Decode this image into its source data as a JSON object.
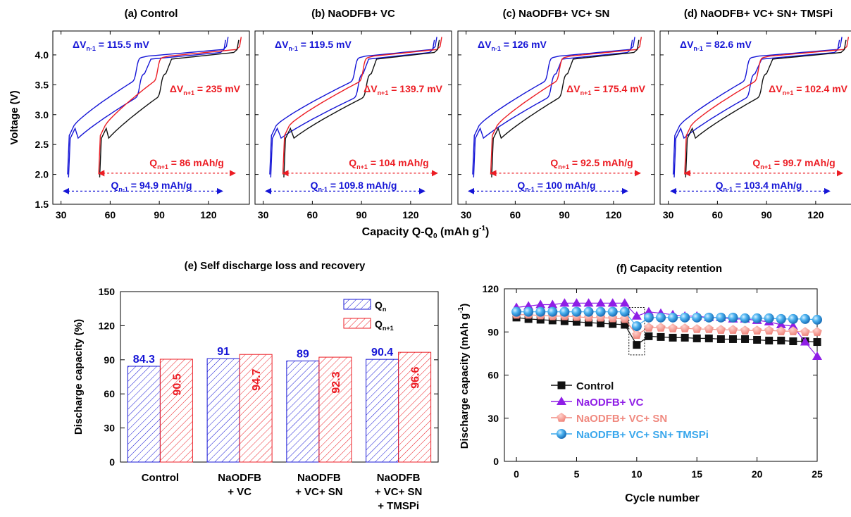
{
  "colors": {
    "blue": "#1515d6",
    "red": "#ec1d24",
    "black": "#111111",
    "purple": "#8f1ee6",
    "salmon": "#f08a80",
    "skyblue": "#3aa7ec"
  },
  "chart_data": [
    {
      "type": "line",
      "panel_group": "voltage-capacity",
      "ylabel": "Voltage (V)",
      "xlabel_main": "Capacity Q-Q",
      "xlabel_sub": "0",
      "xlabel_unit": " (mAh g",
      "xlabel_exp": "-1",
      "xlabel_end": ")",
      "xlim": [
        25,
        145
      ],
      "ylim": [
        1.5,
        4.4
      ],
      "xticks": [
        30,
        60,
        90,
        120
      ],
      "yticks": [
        1.5,
        2.0,
        2.5,
        3.0,
        3.5,
        4.0
      ],
      "yticklabels": [
        "1.5",
        "2.0",
        "2.5",
        "3.0",
        "3.5",
        "4.0"
      ],
      "panels": [
        {
          "title": "(a) Control",
          "blue_start": 34,
          "blue_plateau": 74,
          "blue_end": 132,
          "red_start": 53,
          "red_plateau": 87,
          "red_end": 140,
          "dv_prev": "115.5 mV",
          "dv_next": "235 mV",
          "q_next": "86 mAh/g",
          "q_prev": "94.9 mAh/g"
        },
        {
          "title": "(b) NaODFB+ VC",
          "blue_start": 34,
          "blue_plateau": 84,
          "blue_end": 136,
          "red_start": 42,
          "red_plateau": 89,
          "red_end": 139,
          "dv_prev": "119.5 mV",
          "dv_next": "139.7 mV",
          "q_next": "104 mAh/g",
          "q_prev": "109.8 mAh/g"
        },
        {
          "title": "(c) NaODFB+ VC+ SN",
          "blue_start": 34,
          "blue_plateau": 78,
          "blue_end": 133,
          "red_start": 45,
          "red_plateau": 85,
          "red_end": 137,
          "dv_prev": "126 mV",
          "dv_next": "175.4 mV",
          "q_next": "92.5 mAh/g",
          "q_prev": "100 mAh/g"
        },
        {
          "title": "(d) NaODFB+ VC+ SN+ TMSPi",
          "blue_start": 33,
          "blue_plateau": 76,
          "blue_end": 136,
          "red_start": 40,
          "red_plateau": 83,
          "red_end": 140,
          "dv_prev": "82.6 mV",
          "dv_next": "102.4 mV",
          "q_next": "99.7 mAh/g",
          "q_prev": "103.4 mAh/g"
        }
      ]
    },
    {
      "type": "bar",
      "title": "(e) Self discharge loss and recovery",
      "ylabel": "Discharge capacity (%)",
      "ylim": [
        0,
        150
      ],
      "yticks": [
        0,
        30,
        60,
        90,
        120,
        150
      ],
      "categories": [
        [
          "Control"
        ],
        [
          "NaODFB",
          "+ VC"
        ],
        [
          "NaODFB",
          "+ VC+ SN"
        ],
        [
          "NaODFB",
          "+ VC+ SN",
          "+ TMSPi"
        ]
      ],
      "series": [
        {
          "name": "Q",
          "sub": "n",
          "values": [
            84.3,
            91,
            89,
            90.4
          ],
          "labels": [
            "84.3",
            "91",
            "89",
            "90.4"
          ]
        },
        {
          "name": "Q",
          "sub": "n+1",
          "values": [
            90.5,
            94.7,
            92.3,
            96.6
          ],
          "labels": [
            "90.5",
            "94.7",
            "92.3",
            "96.6"
          ]
        }
      ],
      "legend": "top-right"
    },
    {
      "type": "scatter",
      "title": "(f) Capacity retention",
      "xlabel": "Cycle number",
      "ylabel": "Discharge capacity (mAh g",
      "ylabel_exp": "-1",
      "ylabel_end": ")",
      "xlim": [
        -1,
        25
      ],
      "ylim": [
        0,
        120
      ],
      "xticks": [
        0,
        5,
        10,
        15,
        20,
        25
      ],
      "yticks": [
        0,
        30,
        60,
        90,
        120
      ],
      "x": [
        0,
        1,
        2,
        3,
        4,
        5,
        6,
        7,
        8,
        9,
        10,
        11,
        12,
        13,
        14,
        15,
        16,
        17,
        18,
        19,
        20,
        21,
        22,
        23,
        24,
        25
      ],
      "series": [
        {
          "name": "Control",
          "marker": "square",
          "values": [
            100,
            99,
            98.5,
            98,
            97.5,
            97,
            96.5,
            96,
            95.5,
            95,
            81,
            87,
            86.5,
            86,
            86,
            85.5,
            85.5,
            85,
            85,
            85,
            84.5,
            84,
            84,
            83.5,
            83.5,
            83
          ]
        },
        {
          "name": "NaODFB+ VC",
          "marker": "triangle",
          "values": [
            107,
            108,
            109,
            109,
            110,
            110,
            110,
            110,
            110,
            110,
            101,
            104,
            103,
            102,
            101,
            101,
            100,
            100,
            99,
            99,
            98,
            97,
            95,
            94,
            83,
            73
          ]
        },
        {
          "name": "NaODFB+ VC+ SN",
          "marker": "pentagon",
          "values": [
            102,
            102,
            101.5,
            101,
            101,
            100.5,
            100,
            100,
            99.5,
            99,
            88,
            93,
            93,
            92.5,
            92.5,
            92,
            92,
            91.5,
            91.5,
            91,
            91,
            91,
            90.5,
            90.5,
            90,
            90
          ]
        },
        {
          "name": "NaODFB+ VC+ SN+ TMSPi",
          "marker": "sphere",
          "values": [
            104,
            104,
            104,
            104,
            104,
            104,
            104,
            104,
            104,
            104,
            94,
            100,
            100,
            100,
            100,
            100,
            100,
            100,
            100,
            99.5,
            99.5,
            99.5,
            99,
            99,
            99,
            98.5
          ]
        }
      ],
      "legend": "lower-left"
    }
  ]
}
